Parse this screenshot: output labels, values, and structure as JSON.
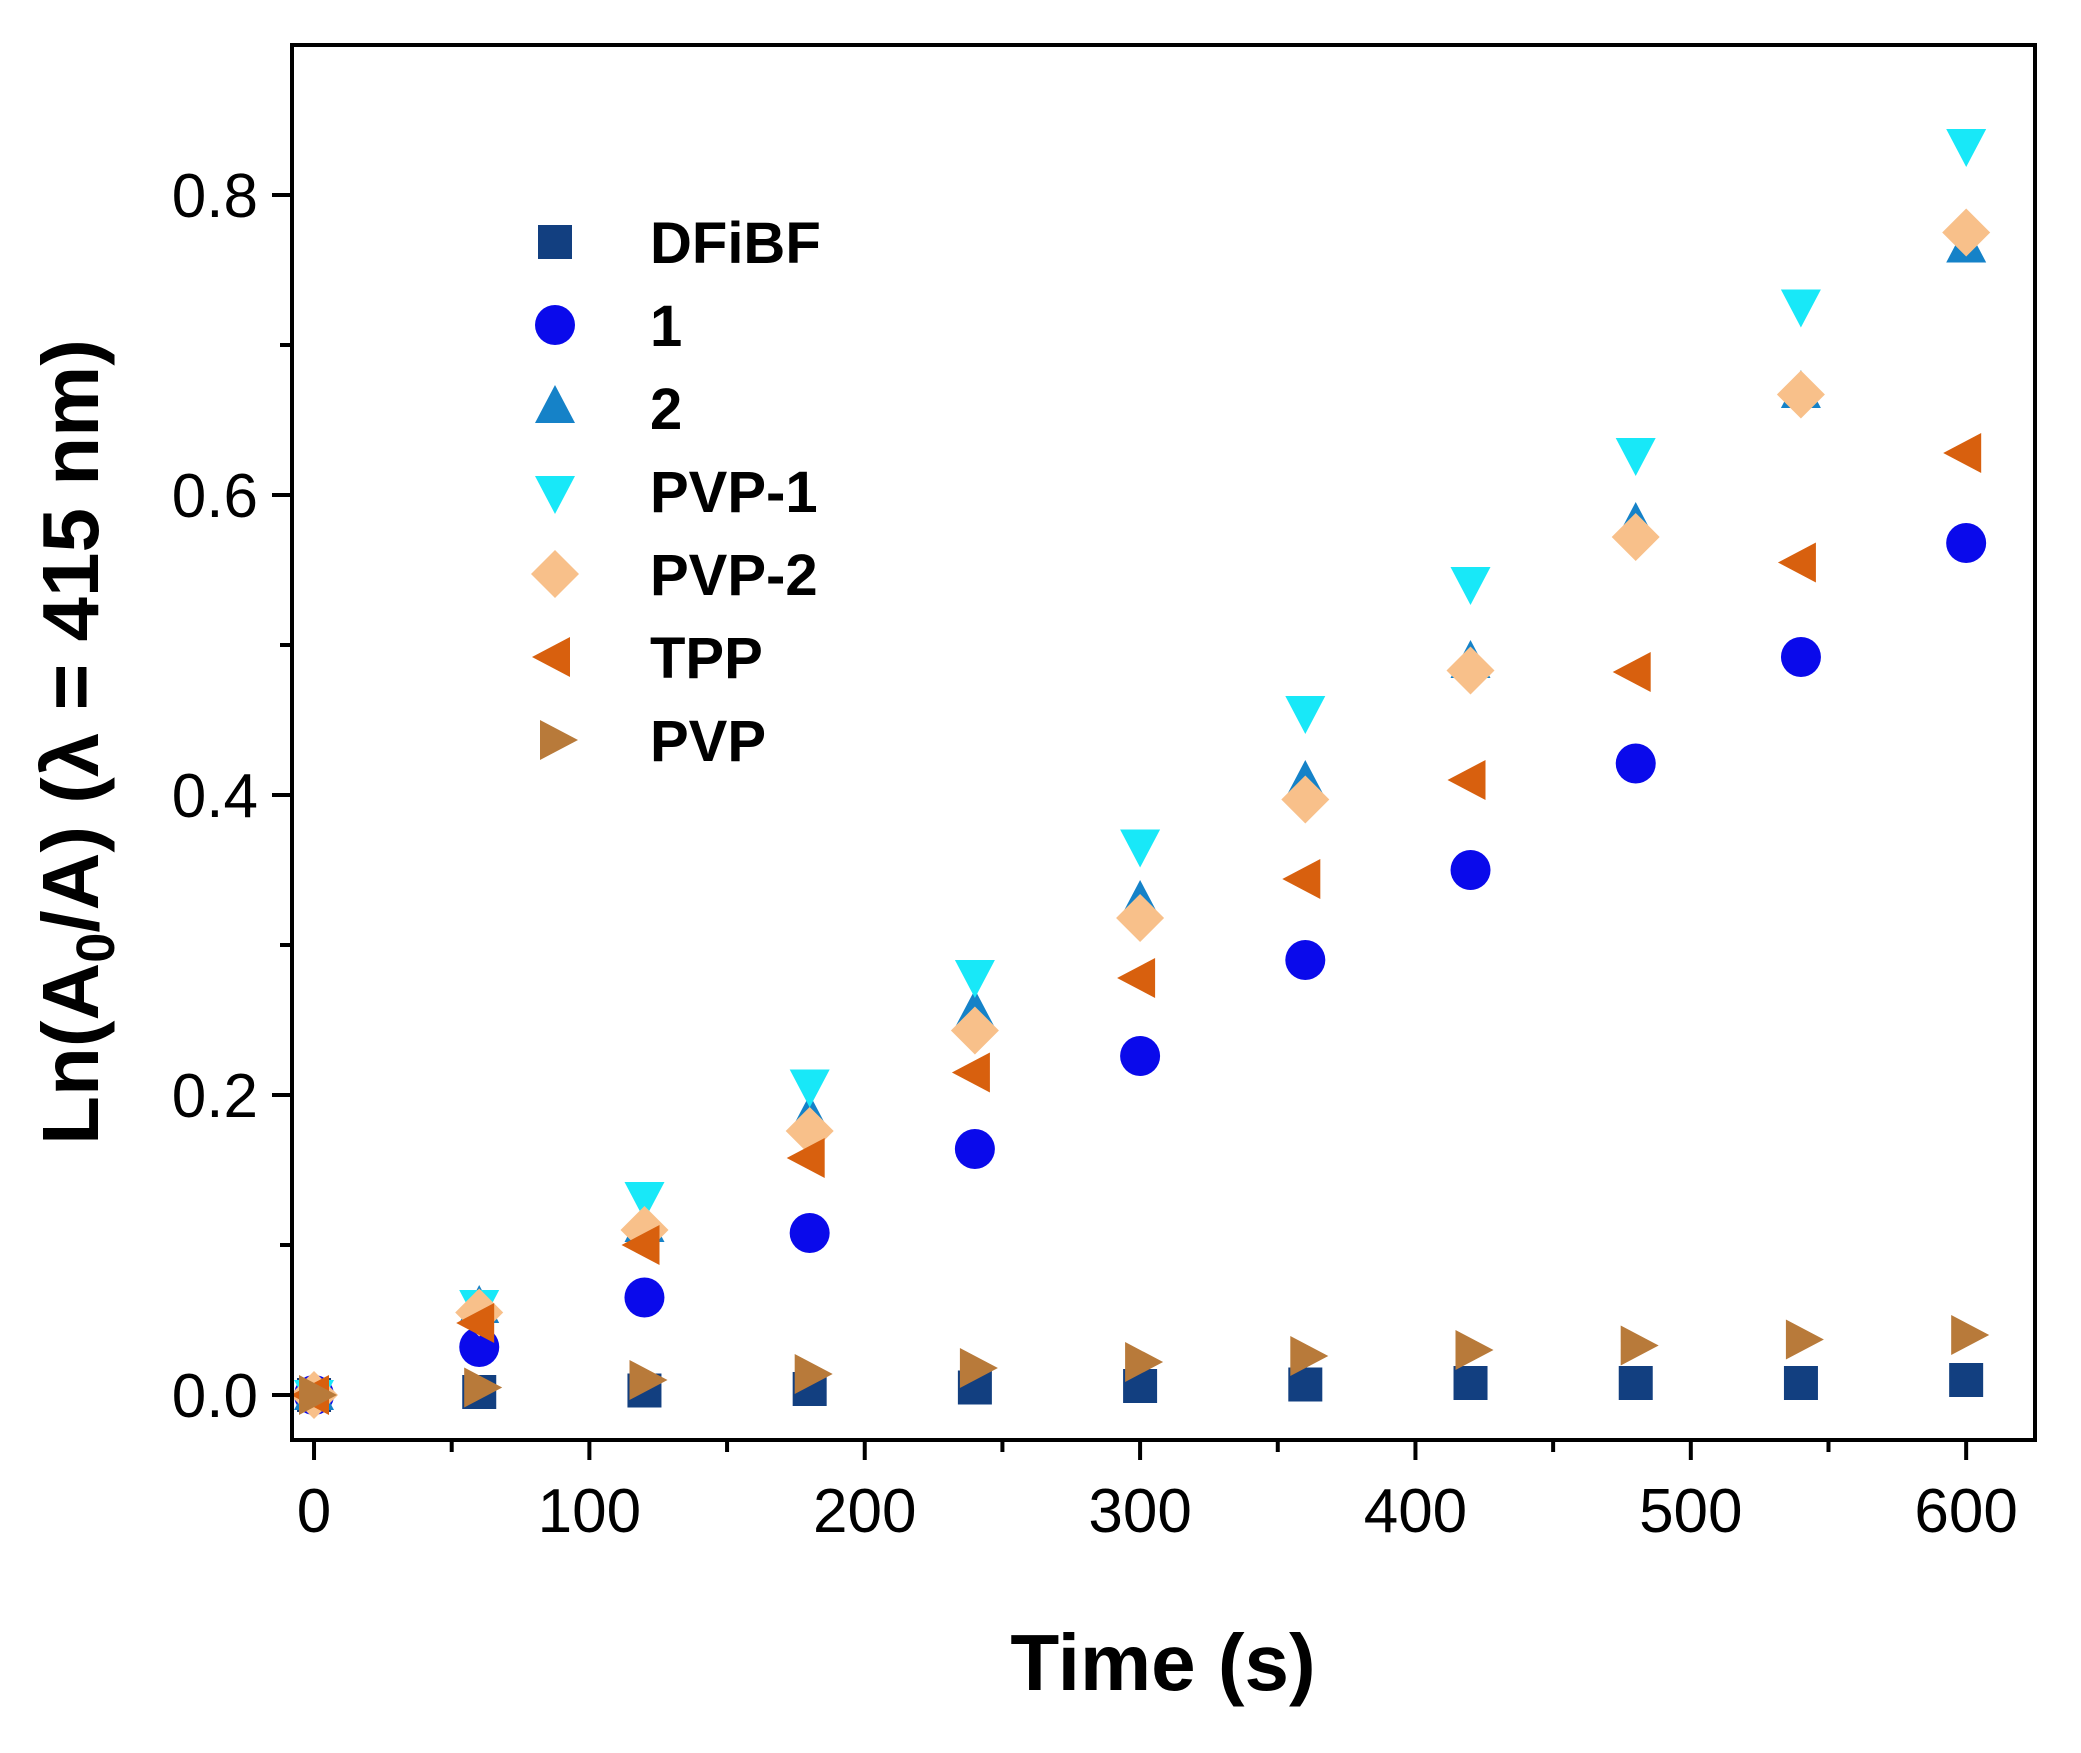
{
  "chart_data": {
    "type": "scatter",
    "title": "",
    "xlabel": "Time (s)",
    "ylabel": {
      "prefix": "Ln(A",
      "sub": "0",
      "suffix": "/A) (λ = 415 nm)"
    },
    "xlim": [
      -8,
      625
    ],
    "ylim": [
      -0.03,
      0.9
    ],
    "x_ticks": [
      0,
      100,
      200,
      300,
      400,
      500,
      600
    ],
    "x_tick_labels": [
      "0",
      "100",
      "200",
      "300",
      "400",
      "500",
      "600"
    ],
    "x_minor_ticks": [
      50,
      150,
      250,
      350,
      450,
      550
    ],
    "y_ticks": [
      0.0,
      0.2,
      0.4,
      0.6,
      0.8
    ],
    "y_tick_labels": [
      "0.0",
      "0.2",
      "0.4",
      "0.6",
      "0.8"
    ],
    "y_minor_ticks": [
      0.1,
      0.3,
      0.5,
      0.7
    ],
    "grid": false,
    "legend_position": "top-left",
    "x": [
      0,
      60,
      120,
      180,
      240,
      300,
      360,
      420,
      480,
      540,
      600
    ],
    "series": [
      {
        "name": "DFiBF",
        "marker": "square",
        "color": "#123f80",
        "values": [
          0.0,
          0.002,
          0.003,
          0.004,
          0.005,
          0.006,
          0.007,
          0.008,
          0.008,
          0.008,
          0.01
        ]
      },
      {
        "name": "1",
        "marker": "circle",
        "color": "#0a0aeb",
        "values": [
          0.0,
          0.032,
          0.065,
          0.108,
          0.164,
          0.226,
          0.29,
          0.35,
          0.421,
          0.492,
          0.568
        ]
      },
      {
        "name": "2",
        "marker": "triangle-up",
        "color": "#1582c8",
        "values": [
          0.0,
          0.058,
          0.112,
          0.185,
          0.255,
          0.328,
          0.408,
          0.488,
          0.58,
          0.668,
          0.765
        ]
      },
      {
        "name": "PVP-1",
        "marker": "triangle-down",
        "color": "#18e8f8",
        "values": [
          0.0,
          0.06,
          0.132,
          0.207,
          0.28,
          0.367,
          0.456,
          0.542,
          0.628,
          0.727,
          0.834
        ]
      },
      {
        "name": "PVP-2",
        "marker": "diamond",
        "color": "#f8c08a",
        "values": [
          0.0,
          0.055,
          0.11,
          0.176,
          0.243,
          0.318,
          0.397,
          0.483,
          0.572,
          0.667,
          0.775
        ]
      },
      {
        "name": "TPP",
        "marker": "triangle-left",
        "color": "#d8600e",
        "values": [
          0.0,
          0.048,
          0.1,
          0.158,
          0.215,
          0.278,
          0.344,
          0.41,
          0.482,
          0.555,
          0.628
        ]
      },
      {
        "name": "PVP",
        "marker": "triangle-right",
        "color": "#b87a3a",
        "values": [
          0.0,
          0.005,
          0.01,
          0.014,
          0.018,
          0.022,
          0.026,
          0.03,
          0.033,
          0.037,
          0.04
        ]
      }
    ]
  }
}
